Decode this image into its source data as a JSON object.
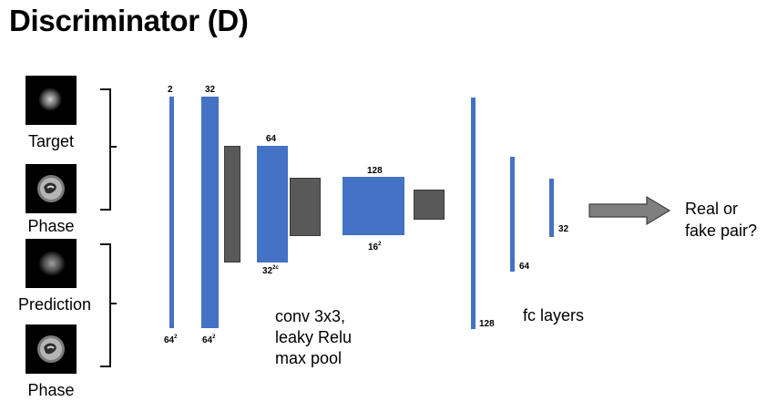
{
  "title": "Discriminator (D)",
  "inputs": {
    "target": "Target",
    "phase_top": "Phase",
    "prediction": "Prediction",
    "phase_bottom": "Phase"
  },
  "conv_labels": {
    "in_channels": "2",
    "in_size": "64",
    "c1_channels": "32",
    "c1_size": "64",
    "c2_channels": "64",
    "c2_size": "32",
    "c3_channels": "128",
    "c3_size": "16",
    "size_exp": "2",
    "size_exp_c2": "2c"
  },
  "conv_note": [
    "conv 3x3,",
    "leaky Relu",
    "max pool"
  ],
  "fc_labels": {
    "fc1": "128",
    "fc2": "64",
    "fc3": "32"
  },
  "fc_note": "fc layers",
  "output": [
    "Real or",
    "fake pair?"
  ],
  "colors": {
    "conv": "#4472C4",
    "pool": "#595959",
    "arrow": "#7F7F7F"
  }
}
